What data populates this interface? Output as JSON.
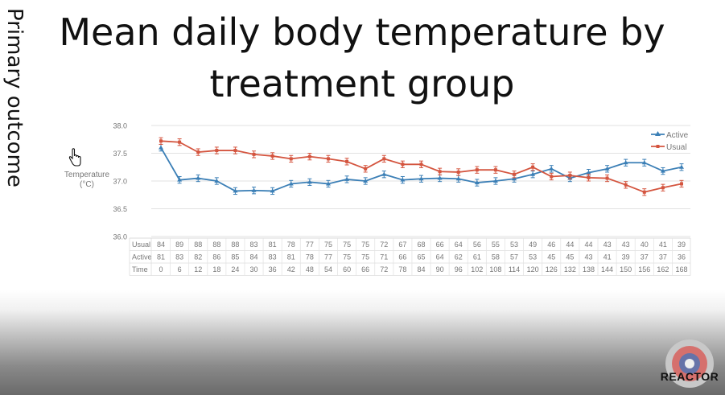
{
  "slide": {
    "title_line1": "Mean daily body temperature by",
    "title_line2": "treatment group",
    "side_label": "Primary outcome",
    "logo_text": "REACTOR"
  },
  "colors": {
    "active": "#3b7fb6",
    "usual": "#d4553f",
    "grid": "#e2e2e2",
    "text": "#777777"
  },
  "chart_data": {
    "type": "line",
    "ylabel": "Temperature (°C)",
    "ylabel_line1": "Temperature",
    "ylabel_line2": "(°C)",
    "ylim": [
      36.0,
      38.0
    ],
    "yticks": [
      "36.0",
      "36.5",
      "37.0",
      "37.5",
      "38.0"
    ],
    "grid": true,
    "legend_position": "top-right",
    "x": [
      0,
      6,
      12,
      18,
      24,
      30,
      36,
      42,
      48,
      54,
      60,
      66,
      72,
      78,
      84,
      90,
      96,
      102,
      108,
      114,
      120,
      126,
      132,
      138,
      144,
      150,
      156,
      162,
      168
    ],
    "series": [
      {
        "name": "Active",
        "values": [
          37.6,
          37.02,
          37.05,
          37.0,
          36.82,
          36.83,
          36.82,
          36.95,
          36.98,
          36.95,
          37.03,
          37.0,
          37.12,
          37.02,
          37.04,
          37.05,
          37.04,
          36.97,
          37.0,
          37.04,
          37.12,
          37.22,
          37.05,
          37.15,
          37.22,
          37.33,
          37.33,
          37.18,
          37.25
        ],
        "error": 0.06
      },
      {
        "name": "Usual",
        "values": [
          37.72,
          37.7,
          37.52,
          37.55,
          37.55,
          37.48,
          37.45,
          37.4,
          37.44,
          37.4,
          37.35,
          37.22,
          37.4,
          37.3,
          37.3,
          37.17,
          37.16,
          37.2,
          37.2,
          37.12,
          37.25,
          37.08,
          37.1,
          37.06,
          37.05,
          36.93,
          36.8,
          36.88,
          36.95
        ],
        "error": 0.06
      }
    ],
    "table": {
      "row_labels": [
        "Usual",
        "Active",
        "Time"
      ],
      "rows": [
        [
          "84",
          "89",
          "88",
          "88",
          "88",
          "83",
          "81",
          "78",
          "77",
          "75",
          "75",
          "75",
          "72",
          "67",
          "68",
          "66",
          "64",
          "56",
          "55",
          "53",
          "49",
          "46",
          "44",
          "44",
          "43",
          "43",
          "40",
          "41",
          "39"
        ],
        [
          "81",
          "83",
          "82",
          "86",
          "85",
          "84",
          "83",
          "81",
          "78",
          "77",
          "75",
          "75",
          "71",
          "66",
          "65",
          "64",
          "62",
          "61",
          "58",
          "57",
          "53",
          "45",
          "45",
          "43",
          "41",
          "39",
          "37",
          "37",
          "36"
        ],
        [
          "0",
          "6",
          "12",
          "18",
          "24",
          "30",
          "36",
          "42",
          "48",
          "54",
          "60",
          "66",
          "72",
          "78",
          "84",
          "90",
          "96",
          "102",
          "108",
          "114",
          "120",
          "126",
          "132",
          "138",
          "144",
          "150",
          "156",
          "162",
          "168"
        ]
      ]
    }
  }
}
